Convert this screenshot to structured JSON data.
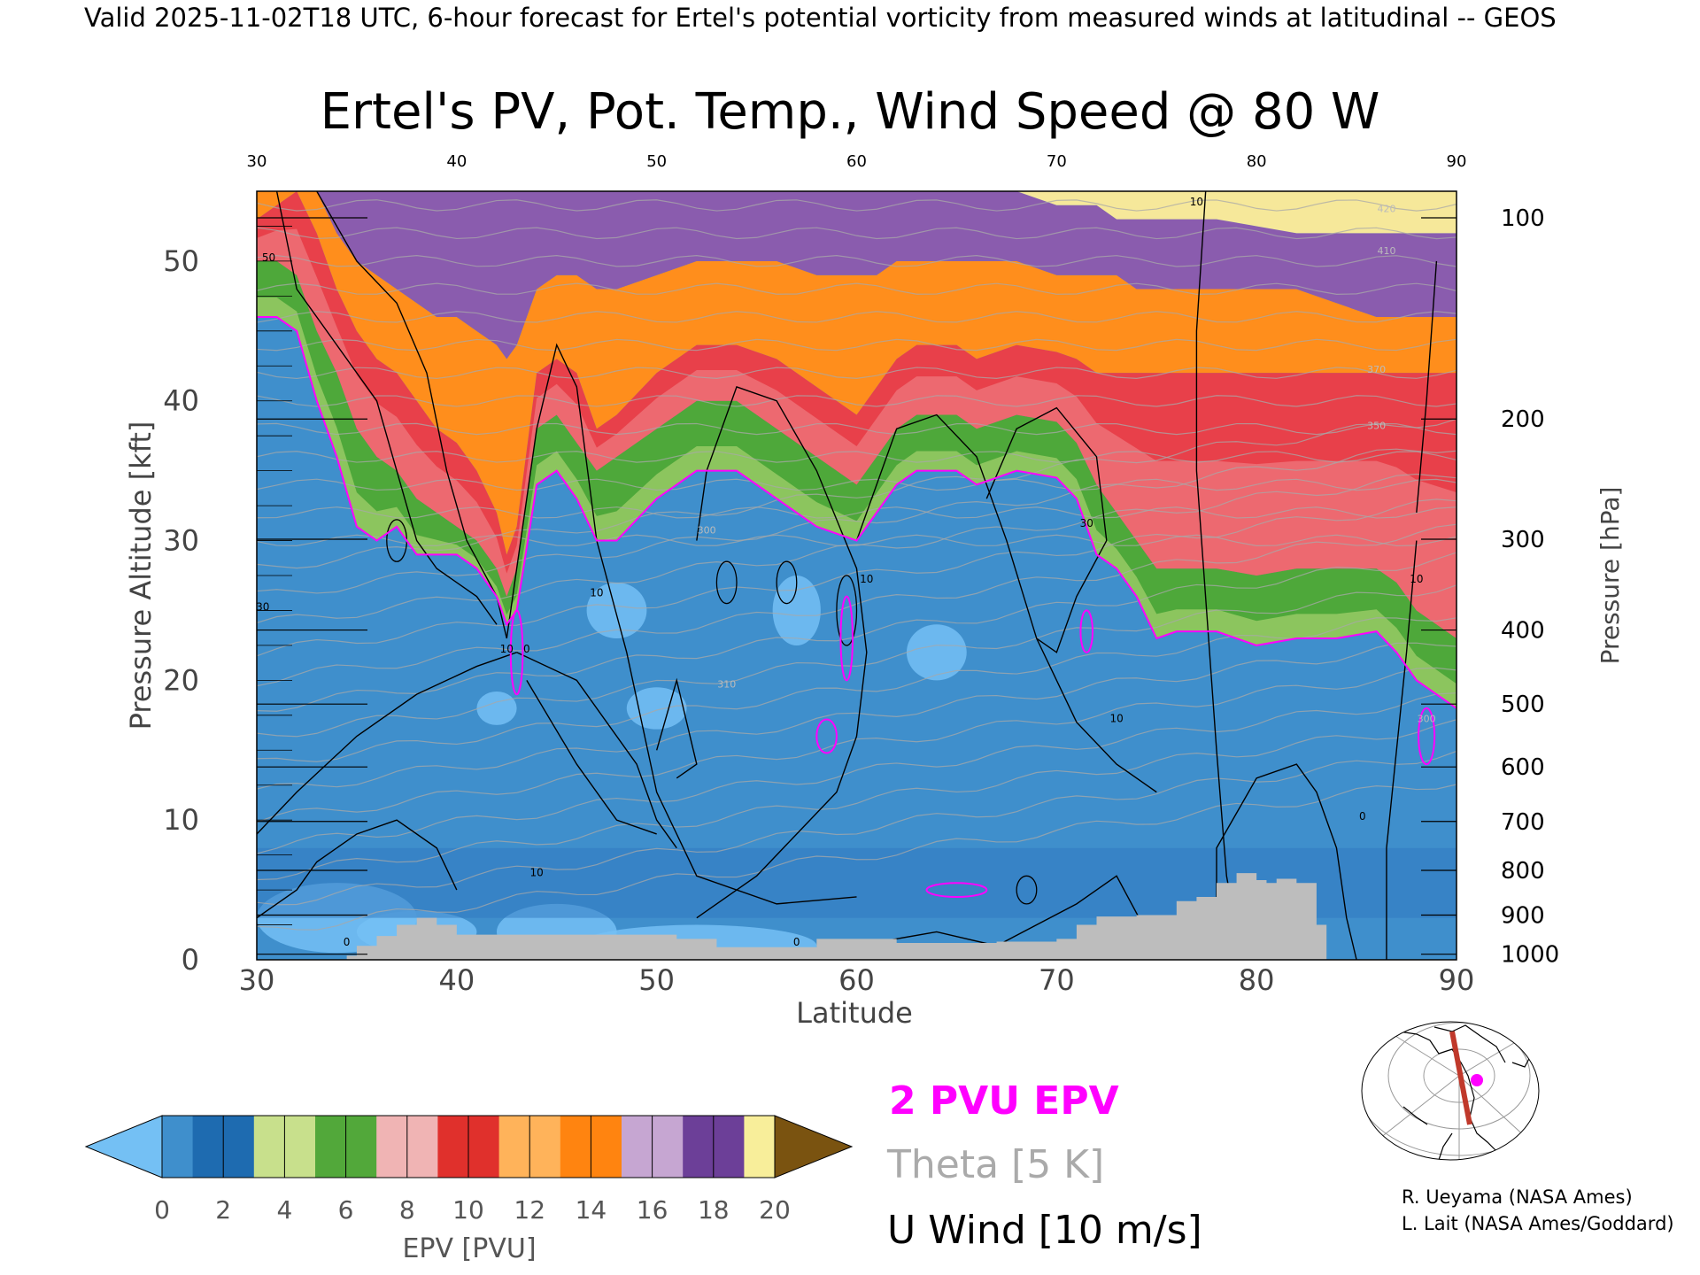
{
  "header": {
    "valid_line": "Valid 2025-11-02T18 UTC, 6-hour forecast for Ertel's potential vorticity from measured winds at latitudinal -- GEOS"
  },
  "chart_data": {
    "type": "heatmap",
    "title": "Ertel's PV, Pot. Temp., Wind Speed @ 80 W",
    "xlabel": "Latitude",
    "ylabel_left": "Pressure Altitude [kft]",
    "ylabel_right": "Pressure [hPa]",
    "xlim": [
      30,
      90
    ],
    "ylim": [
      0,
      55
    ],
    "x_ticks": [
      "30",
      "40",
      "50",
      "60",
      "70",
      "80",
      "90"
    ],
    "top_ticks": [
      "30",
      "40",
      "50",
      "60",
      "70",
      "80",
      "90"
    ],
    "y_ticks": [
      "0",
      "10",
      "20",
      "30",
      "40",
      "50"
    ],
    "pressure_ticks": [
      {
        "label": "100",
        "kft": 53.1
      },
      {
        "label": "200",
        "kft": 38.7
      },
      {
        "label": "300",
        "kft": 30.1
      },
      {
        "label": "400",
        "kft": 23.6
      },
      {
        "label": "500",
        "kft": 18.3
      },
      {
        "label": "600",
        "kft": 13.8
      },
      {
        "label": "700",
        "kft": 9.9
      },
      {
        "label": "800",
        "kft": 6.4
      },
      {
        "label": "900",
        "kft": 3.2
      },
      {
        "label": "1000",
        "kft": 0.4
      }
    ],
    "pv_2pvu_boundary": {
      "lat": [
        30,
        31,
        32,
        33,
        34,
        35,
        36,
        37,
        38,
        39,
        40,
        41,
        42,
        42.5,
        43,
        44,
        45,
        46,
        47,
        48,
        50,
        52,
        54,
        56,
        58,
        59,
        60,
        61,
        62,
        63,
        64,
        65,
        66,
        68,
        70,
        71,
        72,
        73,
        74,
        75,
        76,
        78,
        80,
        82,
        84,
        86,
        87,
        88,
        89,
        90
      ],
      "kft": [
        46,
        46,
        45,
        40,
        36,
        31,
        30,
        31,
        29,
        29,
        29,
        28,
        26,
        24,
        25,
        34,
        35,
        33,
        30,
        30,
        33,
        35,
        35,
        33,
        31,
        30.5,
        30,
        32,
        34,
        35,
        35,
        35,
        34,
        35,
        34.5,
        33,
        29,
        28,
        26,
        23,
        23.5,
        23.5,
        22.5,
        23,
        23,
        23.5,
        22,
        20,
        19,
        18
      ]
    },
    "epv_bands_kft_at_lat": {
      "lat": [
        30,
        31,
        32,
        33,
        34,
        35,
        36,
        37,
        38,
        39,
        40,
        41,
        42,
        42.5,
        43,
        44,
        45,
        46,
        47,
        48,
        50,
        52,
        54,
        56,
        58,
        59,
        60,
        61,
        62,
        63,
        64,
        65,
        66,
        68,
        70,
        71,
        72,
        73,
        74,
        75,
        76,
        78,
        80,
        82,
        84,
        86,
        87,
        88,
        89,
        90
      ],
      "pv4": [
        50,
        50,
        49,
        45,
        42,
        38,
        36,
        35,
        33,
        32,
        31,
        30,
        28,
        26,
        28,
        38,
        39,
        37,
        35,
        36,
        38,
        40,
        40,
        38,
        36,
        35,
        34,
        36,
        38,
        39,
        39,
        39,
        38,
        39,
        38.5,
        37,
        34,
        32,
        30,
        28,
        28,
        28,
        27.5,
        28,
        28,
        28,
        27,
        25,
        24,
        23
      ],
      "pv8": [
        53,
        54,
        55,
        52,
        48,
        45,
        43,
        42,
        40,
        38,
        37,
        35,
        32,
        29,
        31,
        42,
        43,
        42,
        38,
        39,
        42,
        44,
        44,
        43,
        41,
        40,
        39,
        41,
        43,
        44,
        44,
        44,
        43,
        44,
        43.5,
        43,
        42,
        42,
        42,
        42,
        42,
        42,
        42,
        42,
        42,
        42,
        42,
        42,
        42,
        42
      ],
      "pv12": [
        55,
        55,
        55,
        55,
        52,
        50,
        49,
        48,
        47,
        46,
        46,
        45,
        44,
        43,
        44,
        48,
        49,
        49,
        48,
        48,
        49,
        50,
        50,
        50,
        49,
        49,
        49,
        49,
        50,
        50,
        50,
        50,
        50,
        50,
        49,
        49,
        49,
        49,
        48,
        48,
        48,
        48,
        48,
        48,
        47,
        46,
        46,
        46,
        46,
        46
      ],
      "pv16": [
        56,
        56,
        56,
        56,
        56,
        56,
        56,
        56,
        55,
        55,
        55,
        55,
        55,
        55,
        55,
        56,
        56,
        56,
        56,
        55,
        55,
        55,
        55,
        55,
        55,
        55,
        55,
        55,
        55,
        55,
        55,
        55,
        55,
        55,
        54,
        54,
        54,
        53,
        53,
        53,
        53,
        53,
        52.5,
        52,
        52,
        52,
        52,
        52,
        52,
        52
      ]
    },
    "surface_terrain_kft": {
      "lat": [
        30,
        34,
        34.5,
        35,
        36,
        37,
        38,
        39,
        40,
        44,
        47,
        51,
        53,
        56,
        58,
        62,
        67,
        70,
        71,
        72,
        74,
        76,
        77,
        78,
        79,
        80,
        80.5,
        81,
        82,
        83,
        83.5
      ],
      "kft": [
        0,
        0,
        0.3,
        1,
        1.7,
        2.5,
        3,
        2.5,
        1.8,
        1.8,
        1.8,
        1.5,
        0.9,
        0.9,
        1.5,
        1.2,
        1.3,
        1.5,
        2.5,
        3.1,
        3.2,
        4.2,
        4.5,
        5.5,
        6.2,
        5.7,
        5.5,
        5.8,
        5.5,
        2.5,
        0
      ]
    },
    "wind_contour_labels": [
      {
        "text": "10",
        "lat": 42.5,
        "kft": 22
      },
      {
        "text": "0",
        "lat": 43.5,
        "kft": 22
      },
      {
        "text": "10",
        "lat": 47,
        "kft": 26
      },
      {
        "text": "10",
        "lat": 60.5,
        "kft": 27
      },
      {
        "text": "10",
        "lat": 73,
        "kft": 17
      },
      {
        "text": "10",
        "lat": 77,
        "kft": 54
      },
      {
        "text": "10",
        "lat": 88,
        "kft": 27
      },
      {
        "text": "30",
        "lat": 30.3,
        "kft": 25
      },
      {
        "text": "30",
        "lat": 71.5,
        "kft": 31
      },
      {
        "text": "50",
        "lat": 30.6,
        "kft": 50
      },
      {
        "text": "10",
        "lat": 44,
        "kft": 6
      },
      {
        "text": "0",
        "lat": 34.5,
        "kft": 1
      },
      {
        "text": "0",
        "lat": 57,
        "kft": 1
      },
      {
        "text": "0",
        "lat": 85.3,
        "kft": 10
      }
    ],
    "theta_labels": [
      {
        "text": "420",
        "lat": 86.5,
        "kft": 53.5
      },
      {
        "text": "410",
        "lat": 86.5,
        "kft": 50.5
      },
      {
        "text": "370",
        "lat": 86,
        "kft": 42
      },
      {
        "text": "350",
        "lat": 86,
        "kft": 38
      },
      {
        "text": "300",
        "lat": 52.5,
        "kft": 30.5
      },
      {
        "text": "310",
        "lat": 53.5,
        "kft": 19.5
      },
      {
        "text": "300",
        "lat": 88.5,
        "kft": 17
      }
    ],
    "colorbar": {
      "label": "EPV [PVU]",
      "ticks": [
        "0",
        "2",
        "4",
        "6",
        "8",
        "10",
        "12",
        "14",
        "16",
        "18",
        "20"
      ],
      "colors": [
        "#3f8fcc",
        "#1e6bb0",
        "#c8e08c",
        "#52a83a",
        "#f0b4b4",
        "#e0302c",
        "#ffb35a",
        "#ff8410",
        "#c6a6d2",
        "#6c3f98",
        "#f8ee9a"
      ],
      "under_color": "#74c0f4",
      "over_color": "#7a5310"
    }
  },
  "legend": {
    "pv_line": "2 PVU EPV",
    "theta": "Theta [5 K]",
    "wind": "U Wind [10 m/s]",
    "pv_color": "#ff00ff",
    "theta_color": "#aaaaaa",
    "wind_color": "#000000"
  },
  "credits": {
    "line1": "R. Ueyama (NASA Ames)",
    "line2": "L. Lait (NASA Ames/Goddard)"
  },
  "inset_map": {
    "cross_section_color": "#c0392b",
    "marker_color": "#ff00ff"
  }
}
